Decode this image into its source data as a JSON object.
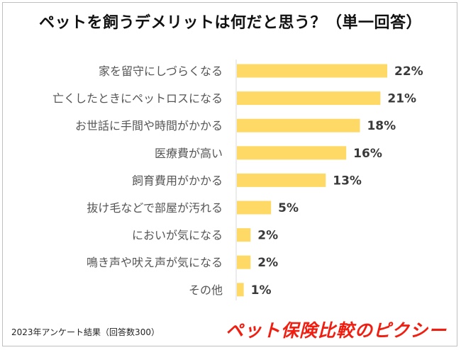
{
  "chart_data": {
    "type": "bar",
    "orientation": "horizontal",
    "title": "ペットを飼うデメリットは何だと思う？（単一回答）",
    "categories": [
      "家を留守にしづらくなる",
      "亡くしたときにペットロスになる",
      "お世話に手間や時間がかかる",
      "医療費が高い",
      "飼育費用がかかる",
      "抜け毛などで部屋が汚れる",
      "においが気になる",
      "鳴き声や吠え声が気になる",
      "その他"
    ],
    "values": [
      22,
      21,
      18,
      16,
      13,
      5,
      2,
      2,
      1
    ],
    "value_labels": [
      "22%",
      "21%",
      "18%",
      "16%",
      "13%",
      "5%",
      "2%",
      "2%",
      "1%"
    ],
    "unit": "%",
    "bar_color": "#FFD966",
    "xlim": [
      0,
      22
    ],
    "grid": false,
    "legend": "none"
  },
  "footnote": "2023年アンケート結果（回答数300）",
  "brand": {
    "logo_text": "ペット保険比較のピクシー",
    "color": "#F01E10"
  }
}
